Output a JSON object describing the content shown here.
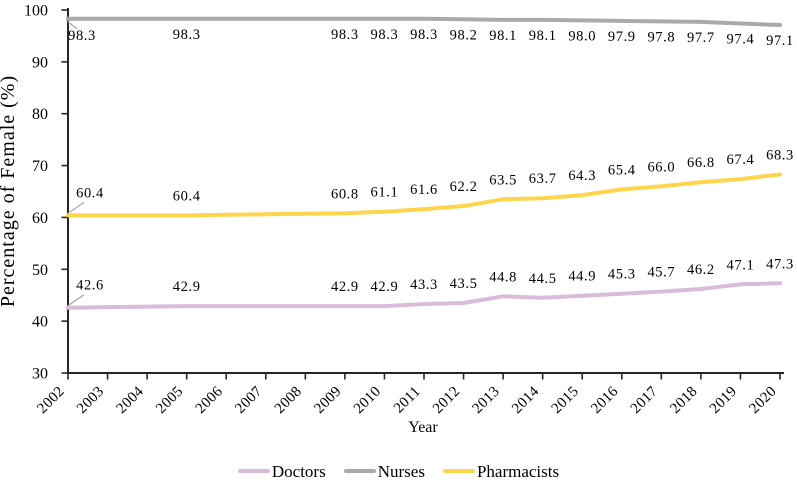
{
  "chart_data": {
    "type": "line",
    "title": "",
    "xlabel": "Year",
    "ylabel": "Percentage of Female (%)",
    "x_ticks": [
      2002,
      2003,
      2004,
      2005,
      2006,
      2007,
      2008,
      2009,
      2010,
      2011,
      2012,
      2013,
      2014,
      2015,
      2016,
      2017,
      2018,
      2019,
      2020
    ],
    "ylim": [
      30,
      100
    ],
    "y_ticks": [
      30,
      40,
      50,
      60,
      70,
      80,
      90,
      100
    ],
    "grid": false,
    "legend_position": "bottom",
    "axis_color": "#262626",
    "text_color": "#000000",
    "leader_line_color": "#ababab",
    "series": [
      {
        "name": "Doctors",
        "color": "#D9BCD9",
        "label_side": "above",
        "points": [
          [
            2002,
            42.6
          ],
          [
            2005,
            42.9
          ],
          [
            2009,
            42.9
          ],
          [
            2010,
            42.9
          ],
          [
            2011,
            43.3
          ],
          [
            2012,
            43.5
          ],
          [
            2013,
            44.8
          ],
          [
            2014,
            44.5
          ],
          [
            2015,
            44.9
          ],
          [
            2016,
            45.3
          ],
          [
            2017,
            45.7
          ],
          [
            2018,
            46.2
          ],
          [
            2019,
            47.1
          ],
          [
            2020,
            47.3
          ]
        ]
      },
      {
        "name": "Nurses",
        "color": "#A9A9A9",
        "label_side": "below",
        "points": [
          [
            2002,
            98.3
          ],
          [
            2005,
            98.3
          ],
          [
            2009,
            98.3
          ],
          [
            2010,
            98.3
          ],
          [
            2011,
            98.3
          ],
          [
            2012,
            98.2
          ],
          [
            2013,
            98.1
          ],
          [
            2014,
            98.1
          ],
          [
            2015,
            98.0
          ],
          [
            2016,
            97.9
          ],
          [
            2017,
            97.8
          ],
          [
            2018,
            97.7
          ],
          [
            2019,
            97.4
          ],
          [
            2020,
            97.1
          ]
        ]
      },
      {
        "name": "Pharmacists",
        "color": "#FFD44D",
        "label_side": "above",
        "points": [
          [
            2002,
            60.4
          ],
          [
            2005,
            60.4
          ],
          [
            2009,
            60.8
          ],
          [
            2010,
            61.1
          ],
          [
            2011,
            61.6
          ],
          [
            2012,
            62.2
          ],
          [
            2013,
            63.5
          ],
          [
            2014,
            63.7
          ],
          [
            2015,
            64.3
          ],
          [
            2016,
            65.4
          ],
          [
            2017,
            66.0
          ],
          [
            2018,
            66.8
          ],
          [
            2019,
            67.4
          ],
          [
            2020,
            68.3
          ]
        ]
      }
    ]
  }
}
